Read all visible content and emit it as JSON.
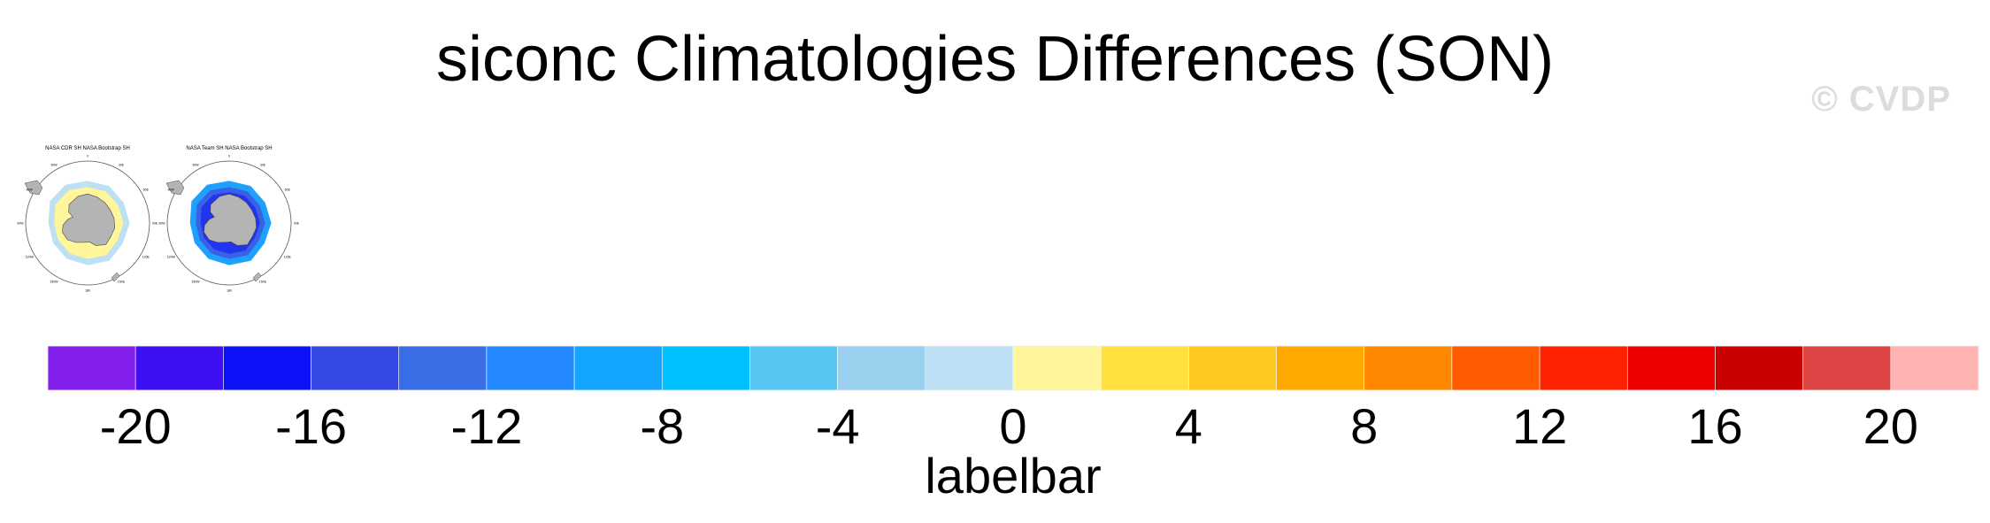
{
  "figure": {
    "title": "siconc Climatologies Differences (SON)",
    "watermark": "© CVDP"
  },
  "panels": [
    {
      "title": "NASA CDR SH NASA Bootstrap SH",
      "lon_labels": [
        "0",
        "30E",
        "60E",
        "90E",
        "120E",
        "150E",
        "180",
        "150W",
        "120W",
        "90W",
        "60W",
        "30W"
      ],
      "pattern": "positive-ring",
      "ring_color": "#fff59b",
      "edge_color": "#bde0f4"
    },
    {
      "title": "NASA Team SH NASA Bootstrap SH",
      "lon_labels": [
        "0",
        "30E",
        "60E",
        "90E",
        "120E",
        "150E",
        "180",
        "150W",
        "120W",
        "90W",
        "60W",
        "30W"
      ],
      "pattern": "negative-ring",
      "ring_color": "#3a60e6",
      "edge_color": "#1ea0ff"
    }
  ],
  "colorbar": {
    "name": "labelbar",
    "min": -22,
    "max": 22,
    "step": 2,
    "tick_labels": [
      "-20",
      "-16",
      "-12",
      "-8",
      "-4",
      "0",
      "4",
      "8",
      "12",
      "16",
      "20"
    ],
    "tick_values": [
      -20,
      -16,
      -12,
      -8,
      -4,
      0,
      4,
      8,
      12,
      16,
      20
    ],
    "colors": [
      "#8420ed",
      "#3d10f3",
      "#0c12f7",
      "#3449e4",
      "#3a6ee6",
      "#2489ff",
      "#12a4ff",
      "#00c1ff",
      "#58c6f3",
      "#9acfee",
      "#bde0f4",
      "#fff59b",
      "#ffe03c",
      "#ffc81e",
      "#ffa800",
      "#ff8800",
      "#ff5a00",
      "#ff2200",
      "#ef0000",
      "#c80000",
      "#dd4444",
      "#ffb3b3"
    ]
  }
}
